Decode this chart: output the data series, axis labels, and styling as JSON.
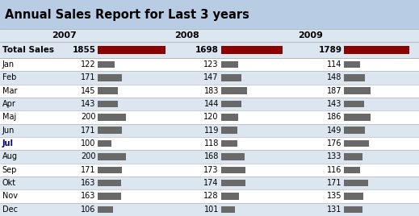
{
  "title": "Annual Sales Report for Last 3 years",
  "title_bg": "#b8cce4",
  "header_bg": "#dce6f1",
  "row_bg_odd": "#ffffff",
  "row_bg_even": "#dce6f1",
  "years": [
    "2007",
    "2008",
    "2009"
  ],
  "months": [
    "Jan",
    "Feb",
    "Mar",
    "Apr",
    "Maj",
    "Jun",
    "Jul",
    "Aug",
    "Sep",
    "Okt",
    "Nov",
    "Dec"
  ],
  "totals": [
    1855,
    1698,
    1789
  ],
  "total_bar_color": "#8b0000",
  "monthly_bar_color": "#696969",
  "values": {
    "2007": [
      122,
      171,
      145,
      143,
      200,
      171,
      100,
      200,
      171,
      163,
      163,
      106
    ],
    "2008": [
      123,
      147,
      183,
      144,
      120,
      119,
      118,
      168,
      173,
      174,
      128,
      101
    ],
    "2009": [
      114,
      148,
      187,
      143,
      186,
      149,
      176,
      133,
      116,
      171,
      135,
      131
    ]
  },
  "max_total": 1855,
  "max_monthly": 200,
  "jul_color": "#000080",
  "line_color": "#aaaaaa"
}
